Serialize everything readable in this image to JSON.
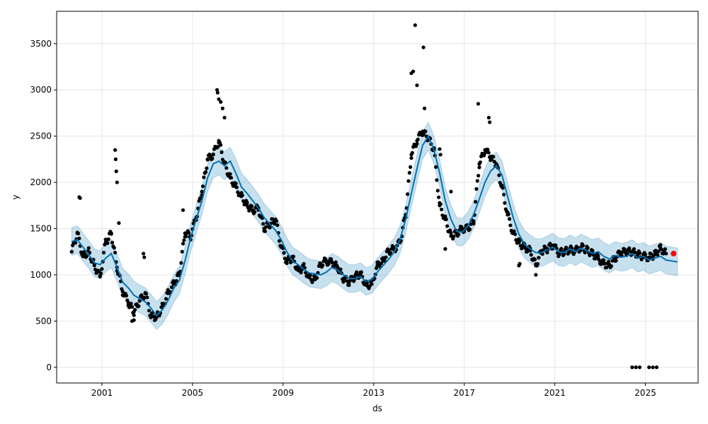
{
  "chart_data": {
    "type": "line",
    "xlabel": "ds",
    "ylabel": "y",
    "x_type": "date",
    "xlim": [
      "1999-01-01",
      "2027-05-01"
    ],
    "ylim": [
      -170,
      3850
    ],
    "x_ticks": [
      {
        "date": "2001-01-01",
        "label": "2001"
      },
      {
        "date": "2005-01-01",
        "label": "2005"
      },
      {
        "date": "2009-01-01",
        "label": "2009"
      },
      {
        "date": "2013-01-01",
        "label": "2013"
      },
      {
        "date": "2017-01-01",
        "label": "2017"
      },
      {
        "date": "2021-01-01",
        "label": "2021"
      },
      {
        "date": "2025-01-01",
        "label": "2025"
      }
    ],
    "y_ticks": [
      0,
      500,
      1000,
      1500,
      2000,
      2500,
      3000,
      3500
    ],
    "grid": true,
    "colors": {
      "observed": "#000000",
      "forecast": "#0072B2",
      "interval": "#0072B2",
      "latest": "#ff0000"
    },
    "series": [
      {
        "role": "forecast",
        "style": "line",
        "points": [
          [
            "1999-09-01",
            1360
          ],
          [
            "1999-12-01",
            1380
          ],
          [
            "2000-03-01",
            1300
          ],
          [
            "2000-06-01",
            1220
          ],
          [
            "2000-09-01",
            1130
          ],
          [
            "2000-12-01",
            1110
          ],
          [
            "2001-03-01",
            1180
          ],
          [
            "2001-06-01",
            1230
          ],
          [
            "2001-09-01",
            1080
          ],
          [
            "2001-12-01",
            920
          ],
          [
            "2002-03-01",
            860
          ],
          [
            "2002-06-01",
            780
          ],
          [
            "2002-09-01",
            740
          ],
          [
            "2002-12-01",
            710
          ],
          [
            "2003-03-01",
            640
          ],
          [
            "2003-06-01",
            560
          ],
          [
            "2003-09-01",
            620
          ],
          [
            "2003-12-01",
            720
          ],
          [
            "2004-03-01",
            850
          ],
          [
            "2004-06-01",
            940
          ],
          [
            "2004-09-01",
            1150
          ],
          [
            "2004-12-01",
            1400
          ],
          [
            "2005-03-01",
            1600
          ],
          [
            "2005-06-01",
            1800
          ],
          [
            "2005-09-01",
            2050
          ],
          [
            "2005-12-01",
            2200
          ],
          [
            "2006-03-01",
            2230
          ],
          [
            "2006-06-01",
            2180
          ],
          [
            "2006-09-01",
            2230
          ],
          [
            "2006-12-01",
            2100
          ],
          [
            "2007-03-01",
            1950
          ],
          [
            "2007-06-01",
            1880
          ],
          [
            "2007-09-01",
            1800
          ],
          [
            "2007-12-01",
            1720
          ],
          [
            "2008-03-01",
            1620
          ],
          [
            "2008-06-01",
            1550
          ],
          [
            "2008-09-01",
            1480
          ],
          [
            "2008-12-01",
            1380
          ],
          [
            "2009-03-01",
            1250
          ],
          [
            "2009-06-01",
            1150
          ],
          [
            "2009-09-01",
            1110
          ],
          [
            "2009-12-01",
            1060
          ],
          [
            "2010-03-01",
            1020
          ],
          [
            "2010-06-01",
            1010
          ],
          [
            "2010-09-01",
            1000
          ],
          [
            "2010-12-01",
            1030
          ],
          [
            "2011-03-01",
            1080
          ],
          [
            "2011-06-01",
            1050
          ],
          [
            "2011-09-01",
            1000
          ],
          [
            "2011-12-01",
            960
          ],
          [
            "2012-03-01",
            960
          ],
          [
            "2012-06-01",
            980
          ],
          [
            "2012-09-01",
            930
          ],
          [
            "2012-12-01",
            950
          ],
          [
            "2013-03-01",
            1030
          ],
          [
            "2013-06-01",
            1100
          ],
          [
            "2013-09-01",
            1170
          ],
          [
            "2013-12-01",
            1250
          ],
          [
            "2014-03-01",
            1380
          ],
          [
            "2014-06-01",
            1600
          ],
          [
            "2014-09-01",
            1880
          ],
          [
            "2014-12-01",
            2150
          ],
          [
            "2015-03-01",
            2400
          ],
          [
            "2015-06-01",
            2500
          ],
          [
            "2015-09-01",
            2350
          ],
          [
            "2015-12-01",
            2100
          ],
          [
            "2016-03-01",
            1800
          ],
          [
            "2016-06-01",
            1600
          ],
          [
            "2016-09-01",
            1470
          ],
          [
            "2016-12-01",
            1460
          ],
          [
            "2017-03-01",
            1530
          ],
          [
            "2017-06-01",
            1650
          ],
          [
            "2017-09-01",
            1820
          ],
          [
            "2017-12-01",
            2000
          ],
          [
            "2018-03-01",
            2120
          ],
          [
            "2018-06-01",
            2180
          ],
          [
            "2018-09-01",
            2080
          ],
          [
            "2018-12-01",
            1850
          ],
          [
            "2019-03-01",
            1620
          ],
          [
            "2019-06-01",
            1440
          ],
          [
            "2019-09-01",
            1330
          ],
          [
            "2019-12-01",
            1280
          ],
          [
            "2020-03-01",
            1240
          ],
          [
            "2020-06-01",
            1240
          ],
          [
            "2020-09-01",
            1270
          ],
          [
            "2020-12-01",
            1300
          ],
          [
            "2021-03-01",
            1250
          ],
          [
            "2021-06-01",
            1240
          ],
          [
            "2021-09-01",
            1280
          ],
          [
            "2021-12-01",
            1250
          ],
          [
            "2022-03-01",
            1290
          ],
          [
            "2022-06-01",
            1260
          ],
          [
            "2022-09-01",
            1230
          ],
          [
            "2022-12-01",
            1250
          ],
          [
            "2023-03-01",
            1200
          ],
          [
            "2023-06-01",
            1170
          ],
          [
            "2023-09-01",
            1210
          ],
          [
            "2023-12-01",
            1190
          ],
          [
            "2024-03-01",
            1200
          ],
          [
            "2024-06-01",
            1230
          ],
          [
            "2024-09-01",
            1180
          ],
          [
            "2024-12-01",
            1200
          ],
          [
            "2025-03-01",
            1160
          ],
          [
            "2025-06-01",
            1180
          ],
          [
            "2025-09-01",
            1200
          ],
          [
            "2025-12-01",
            1160
          ],
          [
            "2026-03-01",
            1150
          ],
          [
            "2026-06-01",
            1140
          ]
        ],
        "band_halfwidth": 150
      },
      {
        "role": "observed",
        "style": "markers",
        "segments": [
          [
            [
              "1999-09-01",
              1250
            ],
            [
              "1999-12-01",
              1450
            ],
            [
              "2000-03-01",
              1200
            ],
            [
              "2000-06-01",
              1250
            ],
            [
              "2000-09-01",
              1100
            ],
            [
              "2000-12-01",
              980
            ],
            [
              "2001-03-01",
              1350
            ],
            [
              "2001-06-01",
              1450
            ],
            [
              "2001-09-01",
              1080
            ],
            [
              "2001-12-01",
              820
            ],
            [
              "2002-03-01",
              700
            ],
            [
              "2002-06-01",
              600
            ],
            [
              "2002-09-01",
              720
            ],
            [
              "2002-12-01",
              800
            ],
            [
              "2003-03-01",
              560
            ],
            [
              "2003-06-01",
              540
            ],
            [
              "2003-09-01",
              650
            ],
            [
              "2003-12-01",
              800
            ],
            [
              "2004-03-01",
              900
            ],
            [
              "2004-06-01",
              1000
            ],
            [
              "2004-09-01",
              1450
            ],
            [
              "2004-12-01",
              1420
            ],
            [
              "2005-03-01",
              1620
            ],
            [
              "2005-06-01",
              1900
            ],
            [
              "2005-09-01",
              2250
            ],
            [
              "2005-12-01",
              2300
            ],
            [
              "2006-03-01",
              2450
            ],
            [
              "2006-06-01",
              2200
            ],
            [
              "2006-09-01",
              2050
            ],
            [
              "2006-12-01",
              1950
            ],
            [
              "2007-03-01",
              1850
            ],
            [
              "2007-06-01",
              1750
            ],
            [
              "2007-09-01",
              1700
            ],
            [
              "2007-12-01",
              1720
            ],
            [
              "2008-03-01",
              1500
            ],
            [
              "2008-06-01",
              1550
            ],
            [
              "2008-09-01",
              1600
            ],
            [
              "2008-12-01",
              1300
            ],
            [
              "2009-03-01",
              1150
            ],
            [
              "2009-06-01",
              1180
            ],
            [
              "2009-09-01",
              1050
            ],
            [
              "2009-12-01",
              1080
            ],
            [
              "2010-03-01",
              970
            ],
            [
              "2010-06-01",
              950
            ],
            [
              "2010-09-01",
              1120
            ],
            [
              "2010-12-01",
              1150
            ],
            [
              "2011-03-01",
              1130
            ],
            [
              "2011-06-01",
              1080
            ],
            [
              "2011-09-01",
              960
            ],
            [
              "2011-12-01",
              920
            ],
            [
              "2012-03-01",
              980
            ],
            [
              "2012-06-01",
              1010
            ],
            [
              "2012-09-01",
              890
            ],
            [
              "2012-12-01",
              900
            ],
            [
              "2013-03-01",
              1100
            ],
            [
              "2013-06-01",
              1150
            ],
            [
              "2013-09-01",
              1260
            ],
            [
              "2013-12-01",
              1280
            ],
            [
              "2014-03-01",
              1350
            ],
            [
              "2014-06-01",
              1650
            ],
            [
              "2014-09-01",
              2300
            ],
            [
              "2014-12-01",
              2450
            ],
            [
              "2015-03-01",
              2550
            ],
            [
              "2015-06-01",
              2480
            ],
            [
              "2015-09-01",
              2350
            ],
            [
              "2015-12-01",
              1750
            ],
            [
              "2016-03-01",
              1600
            ],
            [
              "2016-06-01",
              1420
            ],
            [
              "2016-09-01",
              1450
            ],
            [
              "2016-12-01",
              1500
            ],
            [
              "2017-03-01",
              1500
            ],
            [
              "2017-06-01",
              1580
            ],
            [
              "2017-09-01",
              2200
            ],
            [
              "2017-12-01",
              2350
            ],
            [
              "2018-03-01",
              2280
            ],
            [
              "2018-06-01",
              2200
            ],
            [
              "2018-09-01",
              1950
            ],
            [
              "2018-12-01",
              1650
            ],
            [
              "2019-03-01",
              1450
            ],
            [
              "2019-06-01",
              1350
            ],
            [
              "2019-09-01",
              1300
            ],
            [
              "2019-12-01",
              1260
            ],
            [
              "2020-03-01",
              1100
            ],
            [
              "2020-06-01",
              1260
            ],
            [
              "2020-09-01",
              1280
            ],
            [
              "2020-12-01",
              1320
            ],
            [
              "2021-03-01",
              1240
            ],
            [
              "2021-06-01",
              1250
            ],
            [
              "2021-09-01",
              1270
            ],
            [
              "2021-12-01",
              1260
            ],
            [
              "2022-03-01",
              1300
            ],
            [
              "2022-06-01",
              1270
            ],
            [
              "2022-09-01",
              1230
            ],
            [
              "2022-12-01",
              1180
            ],
            [
              "2023-03-01",
              1120
            ],
            [
              "2023-06-01",
              1100
            ],
            [
              "2023-09-01",
              1180
            ],
            [
              "2023-12-01",
              1240
            ],
            [
              "2024-03-01",
              1250
            ],
            [
              "2024-06-01",
              1250
            ],
            [
              "2024-09-01",
              1220
            ],
            [
              "2024-12-01",
              1200
            ],
            [
              "2025-03-01",
              1190
            ],
            [
              "2025-06-01",
              1220
            ],
            [
              "2025-09-01",
              1290
            ],
            [
              "2025-12-01",
              1230
            ]
          ]
        ],
        "outliers": [
          [
            "2000-01-01",
            1840
          ],
          [
            "2000-01-15",
            1830
          ],
          [
            "2001-08-01",
            2350
          ],
          [
            "2001-08-10",
            2250
          ],
          [
            "2001-08-20",
            2120
          ],
          [
            "2001-09-01",
            2000
          ],
          [
            "2001-10-01",
            1560
          ],
          [
            "2002-05-01",
            500
          ],
          [
            "2002-06-01",
            510
          ],
          [
            "2002-11-01",
            1230
          ],
          [
            "2002-11-15",
            1190
          ],
          [
            "2004-08-01",
            1700
          ],
          [
            "2006-02-01",
            3000
          ],
          [
            "2006-02-10",
            2970
          ],
          [
            "2006-03-01",
            2900
          ],
          [
            "2006-04-01",
            2870
          ],
          [
            "2006-05-01",
            2800
          ],
          [
            "2006-06-01",
            2700
          ],
          [
            "2014-09-01",
            3180
          ],
          [
            "2014-10-01",
            3200
          ],
          [
            "2014-11-01",
            3700
          ],
          [
            "2014-12-01",
            3050
          ],
          [
            "2015-03-15",
            3460
          ],
          [
            "2015-04-01",
            2800
          ],
          [
            "2015-12-01",
            2360
          ],
          [
            "2015-12-15",
            2300
          ],
          [
            "2016-06-01",
            1900
          ],
          [
            "2016-03-01",
            1280
          ],
          [
            "2017-08-15",
            2850
          ],
          [
            "2018-02-01",
            2700
          ],
          [
            "2018-02-15",
            2650
          ],
          [
            "2019-06-01",
            1100
          ],
          [
            "2019-06-15",
            1120
          ],
          [
            "2020-03-01",
            1000
          ],
          [
            "2024-06-01",
            0
          ],
          [
            "2024-08-01",
            0
          ],
          [
            "2024-10-01",
            0
          ],
          [
            "2025-03-01",
            0
          ],
          [
            "2025-05-01",
            0
          ],
          [
            "2025-07-01",
            0
          ]
        ]
      },
      {
        "role": "latest",
        "style": "marker",
        "point": [
          "2026-04-01",
          1230
        ]
      }
    ]
  }
}
